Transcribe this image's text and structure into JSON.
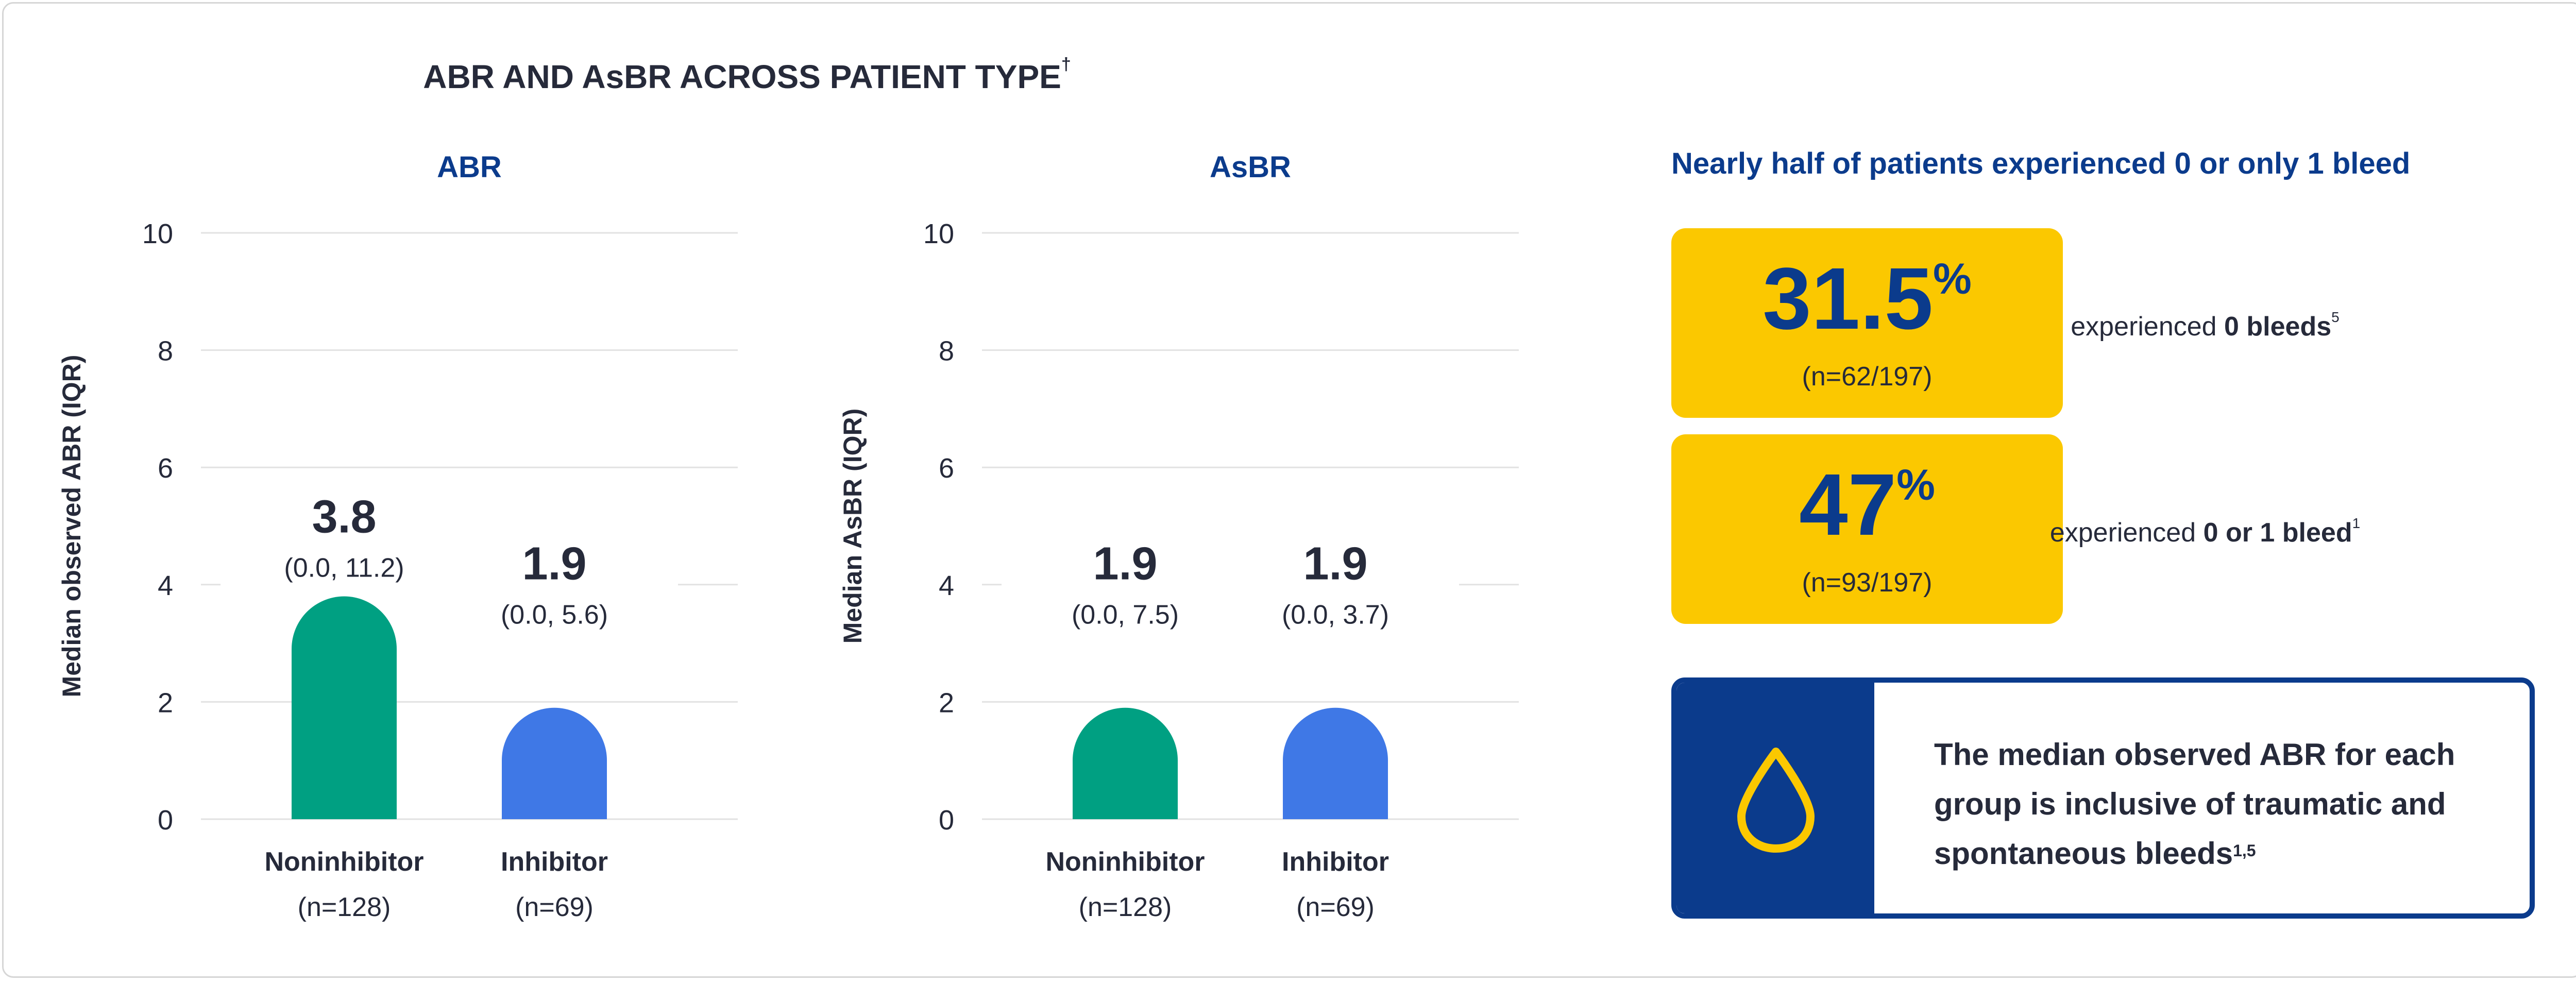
{
  "title": "ABR AND AsBR ACROSS PATIENT TYPE",
  "title_mark": "†",
  "colors": {
    "noninhibitor": "#00a082",
    "inhibitor": "#3f78e6",
    "navy": "#0b3b8c",
    "yellow": "#fbc800"
  },
  "chart_data": [
    {
      "type": "bar",
      "title": "ABR",
      "ylabel": "Median observed ABR (IQR)",
      "ylim": [
        0,
        10
      ],
      "yticks": [
        0,
        2,
        4,
        6,
        8,
        10
      ],
      "grid": true,
      "categories": [
        "Noninhibitor",
        "Inhibitor"
      ],
      "category_n": [
        "(n=128)",
        "(n=69)"
      ],
      "values": [
        3.8,
        1.9
      ],
      "value_labels": [
        "3.8",
        "1.9"
      ],
      "iqr_labels": [
        "(0.0, 11.2)",
        "(0.0, 5.6)"
      ]
    },
    {
      "type": "bar",
      "title": "AsBR",
      "ylabel": "Median AsBR (IQR)",
      "ylim": [
        0,
        10
      ],
      "yticks": [
        0,
        2,
        4,
        6,
        8,
        10
      ],
      "grid": true,
      "categories": [
        "Noninhibitor",
        "Inhibitor"
      ],
      "category_n": [
        "(n=128)",
        "(n=69)"
      ],
      "values": [
        1.9,
        1.9
      ],
      "value_labels": [
        "1.9",
        "1.9"
      ],
      "iqr_labels": [
        "(0.0, 7.5)",
        "(0.0, 3.7)"
      ]
    }
  ],
  "summary": {
    "header": "Nearly half of patients experienced 0 or only 1 bleed",
    "stats": [
      {
        "value": "31.5",
        "unit": "%",
        "n": "(n=62/197)",
        "desc_prefix": "experienced ",
        "desc_bold": "0 bleeds",
        "desc_ref": "5"
      },
      {
        "value": "47",
        "unit": "%",
        "n": "(n=93/197)",
        "desc_prefix": "experienced ",
        "desc_bold": "0 or 1 bleed",
        "desc_ref": "1"
      }
    ]
  },
  "callout": {
    "icon": "drop-icon",
    "text": "The median observed ABR for each group is inclusive of traumatic and spontaneous bleeds",
    "ref": "1,5"
  }
}
